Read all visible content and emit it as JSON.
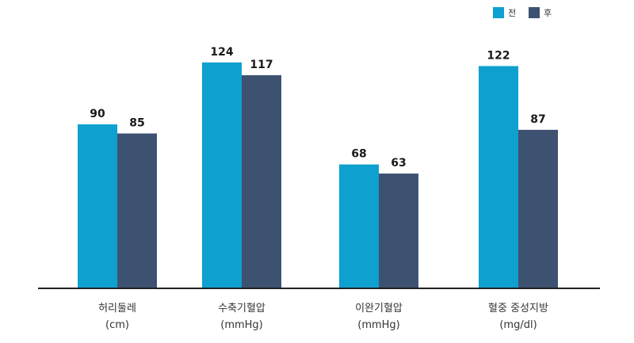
{
  "chart_data": {
    "type": "bar",
    "categories": [
      {
        "line1": "허리둘레",
        "line2": "(cm)"
      },
      {
        "line1": "수축기혈압",
        "line2": "(mmHg)"
      },
      {
        "line1": "이완기혈압",
        "line2": "(mmHg)"
      },
      {
        "line1": "혈중 중성지방",
        "line2": "(mg/dl)"
      }
    ],
    "series": [
      {
        "name": "전",
        "color": "#0ea0cf",
        "values": [
          90,
          124,
          68,
          122
        ]
      },
      {
        "name": "후",
        "color": "#3d5271",
        "values": [
          85,
          117,
          63,
          87
        ]
      }
    ],
    "ylim": [
      0,
      140
    ],
    "grid": false,
    "legend_position": "top-right",
    "title": "",
    "xlabel": "",
    "ylabel": ""
  }
}
